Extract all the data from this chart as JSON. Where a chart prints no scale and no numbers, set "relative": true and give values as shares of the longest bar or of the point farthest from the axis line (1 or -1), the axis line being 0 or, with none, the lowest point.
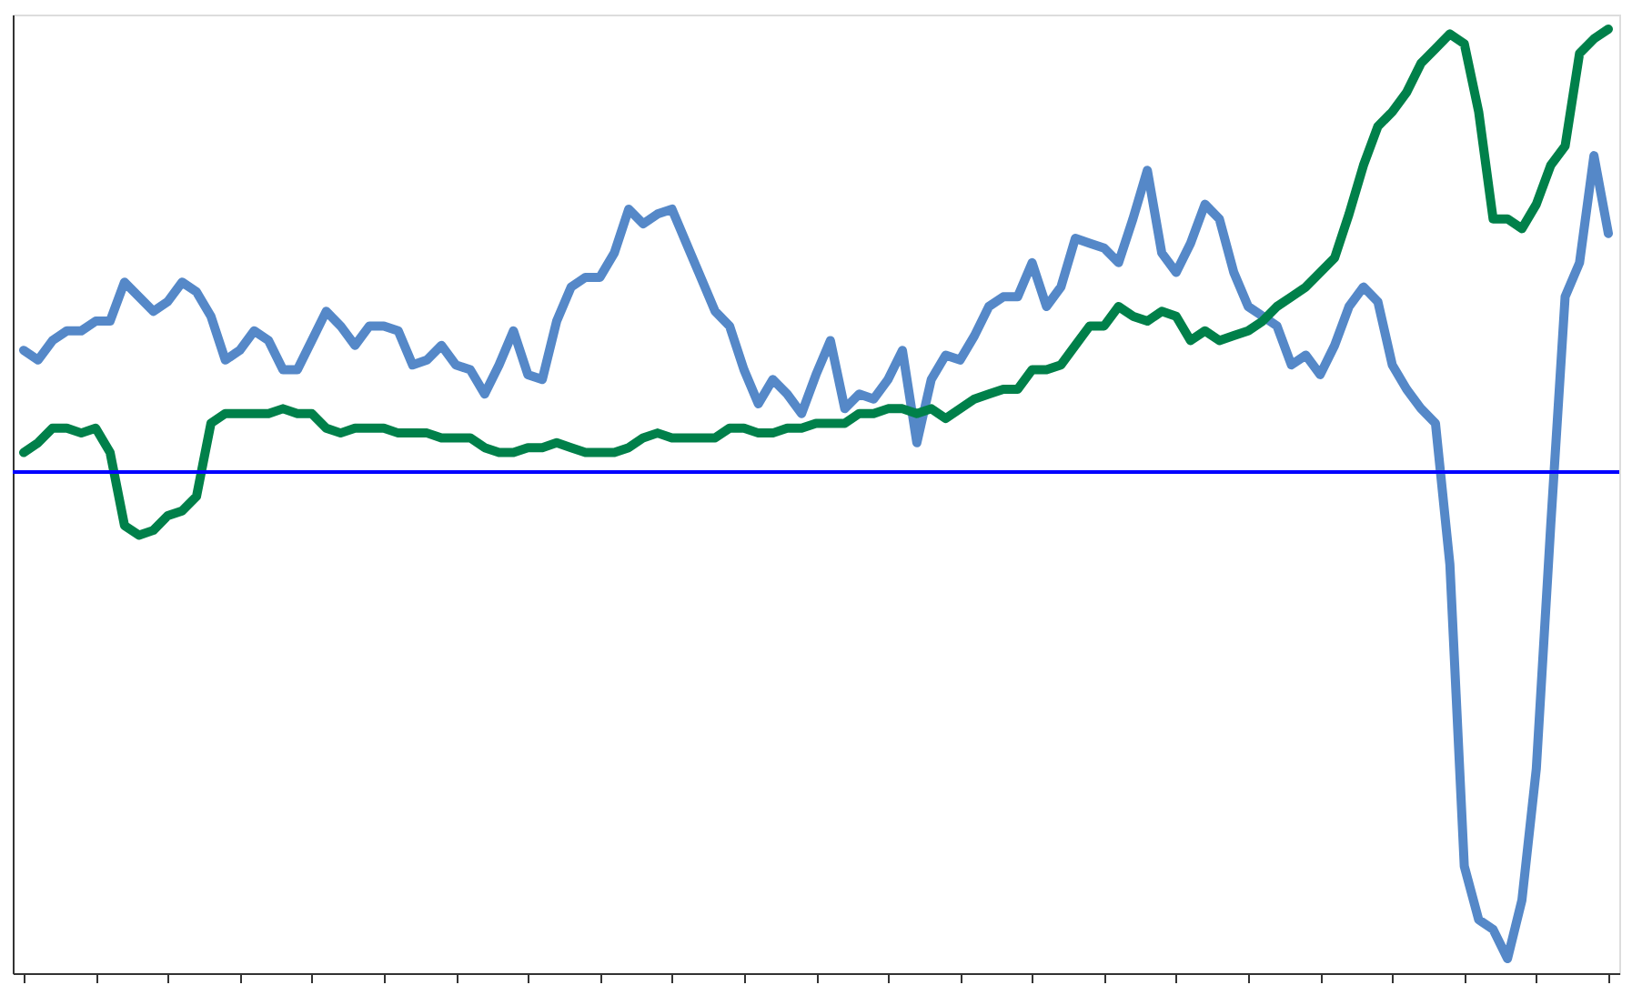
{
  "chart_data": {
    "type": "line",
    "relative": true,
    "legend": false,
    "grid": false,
    "marker": "none",
    "line_style": "solid",
    "categories": [
      null,
      null,
      null,
      null,
      null,
      null,
      null,
      null,
      null,
      null,
      null,
      null,
      null,
      null,
      null,
      null,
      null,
      null,
      null,
      null,
      null,
      null,
      null,
      null,
      null,
      null,
      null,
      null,
      null,
      null,
      null,
      null,
      null,
      null,
      null,
      null,
      null,
      null,
      null,
      null,
      null,
      null,
      null,
      null,
      null,
      null,
      null,
      null,
      null,
      null,
      null,
      null,
      null,
      null,
      null,
      null,
      null,
      null,
      null,
      null,
      null,
      null,
      null,
      null,
      null,
      null,
      null,
      null,
      null,
      null,
      null,
      null,
      null,
      null,
      null,
      null,
      null,
      null,
      null,
      null,
      null,
      null,
      null,
      null,
      null,
      null,
      null,
      null,
      null,
      null,
      null,
      null,
      null,
      null,
      null,
      null,
      null,
      null,
      null,
      null,
      null,
      null,
      null,
      null,
      null,
      null,
      null,
      null,
      null,
      null,
      null
    ],
    "series": [
      {
        "color": "#5588c8",
        "values": [
          0.25,
          0.23,
          0.27,
          0.29,
          0.29,
          0.31,
          0.31,
          0.39,
          0.36,
          0.33,
          0.35,
          0.39,
          0.37,
          0.32,
          0.23,
          0.25,
          0.29,
          0.27,
          0.21,
          0.21,
          0.27,
          0.33,
          0.3,
          0.26,
          0.3,
          0.3,
          0.29,
          0.22,
          0.23,
          0.26,
          0.22,
          0.21,
          0.16,
          0.22,
          0.29,
          0.2,
          0.19,
          0.31,
          0.38,
          0.4,
          0.4,
          0.45,
          0.54,
          0.51,
          0.53,
          0.54,
          0.47,
          0.4,
          0.33,
          0.3,
          0.21,
          0.14,
          0.19,
          0.16,
          0.12,
          0.2,
          0.27,
          0.13,
          0.16,
          0.15,
          0.19,
          0.25,
          0.06,
          0.19,
          0.24,
          0.23,
          0.28,
          0.34,
          0.36,
          0.36,
          0.43,
          0.34,
          0.38,
          0.48,
          0.47,
          0.46,
          0.43,
          0.52,
          0.62,
          0.45,
          0.41,
          0.47,
          0.55,
          0.52,
          0.41,
          0.34,
          0.32,
          0.3,
          0.22,
          0.24,
          0.2,
          0.26,
          0.34,
          0.38,
          0.35,
          0.22,
          0.17,
          0.13,
          0.1,
          -0.19,
          -0.81,
          -0.92,
          -0.94,
          -1.0,
          -0.88,
          -0.61,
          -0.11,
          0.36,
          0.43,
          0.65,
          0.49
        ]
      },
      {
        "color": "#00804a",
        "values": [
          0.04,
          0.06,
          0.09,
          0.09,
          0.08,
          0.09,
          0.04,
          -0.11,
          -0.13,
          -0.12,
          -0.09,
          -0.08,
          -0.05,
          0.1,
          0.12,
          0.12,
          0.12,
          0.12,
          0.13,
          0.12,
          0.12,
          0.09,
          0.08,
          0.09,
          0.09,
          0.09,
          0.08,
          0.08,
          0.08,
          0.07,
          0.07,
          0.07,
          0.05,
          0.04,
          0.04,
          0.05,
          0.05,
          0.06,
          0.05,
          0.04,
          0.04,
          0.04,
          0.05,
          0.07,
          0.08,
          0.07,
          0.07,
          0.07,
          0.07,
          0.09,
          0.09,
          0.08,
          0.08,
          0.09,
          0.09,
          0.1,
          0.1,
          0.1,
          0.12,
          0.12,
          0.13,
          0.13,
          0.12,
          0.13,
          0.11,
          0.13,
          0.15,
          0.16,
          0.17,
          0.17,
          0.21,
          0.21,
          0.22,
          0.26,
          0.3,
          0.3,
          0.34,
          0.32,
          0.31,
          0.33,
          0.32,
          0.27,
          0.29,
          0.27,
          0.28,
          0.29,
          0.31,
          0.34,
          0.36,
          0.38,
          0.41,
          0.44,
          0.53,
          0.63,
          0.71,
          0.74,
          0.78,
          0.84,
          0.87,
          0.9,
          0.88,
          0.74,
          0.52,
          0.52,
          0.5,
          0.55,
          0.63,
          0.67,
          0.86,
          0.89,
          0.91
        ]
      }
    ],
    "ref_lines": [
      {
        "axis": "y",
        "value": 0,
        "color": "#0000ff"
      }
    ]
  }
}
